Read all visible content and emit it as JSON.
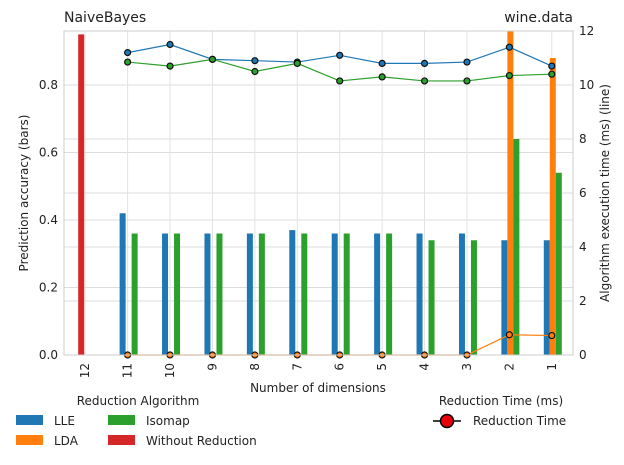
{
  "chart_data": {
    "type": "bar",
    "title_left": "NaiveBayes",
    "title_right": "wine.data",
    "xlabel": "Number of dimensions",
    "ylabel_left": "Prediction accuracy (bars)",
    "ylabel_right": "Algorithm execution time (ms) (line)",
    "categories": [
      "12",
      "11",
      "10",
      "9",
      "8",
      "7",
      "6",
      "5",
      "4",
      "3",
      "2",
      "1"
    ],
    "ylim_left": [
      0,
      0.96
    ],
    "yticks_left": [
      "0.0",
      "0.2",
      "0.4",
      "0.6",
      "0.8"
    ],
    "ylim_right": [
      0,
      12
    ],
    "yticks_right": [
      "0",
      "2",
      "4",
      "6",
      "8",
      "10",
      "12"
    ],
    "grid": true,
    "bar_series": [
      {
        "name": "LLE",
        "color": "#1f77b4",
        "values": [
          null,
          0.42,
          0.36,
          0.36,
          0.36,
          0.37,
          0.36,
          0.36,
          0.36,
          0.36,
          0.34,
          0.34
        ]
      },
      {
        "name": "LDA",
        "color": "#ff7f0e",
        "values": [
          null,
          null,
          null,
          null,
          null,
          null,
          null,
          null,
          null,
          null,
          0.96,
          0.88
        ]
      },
      {
        "name": "Isomap",
        "color": "#2ca02c",
        "values": [
          null,
          0.36,
          0.36,
          0.36,
          0.36,
          0.36,
          0.36,
          0.36,
          0.34,
          0.34,
          0.64,
          0.54
        ]
      },
      {
        "name": "Without Reduction",
        "color": "#d62728",
        "values": [
          0.95,
          null,
          null,
          null,
          null,
          null,
          null,
          null,
          null,
          null,
          null,
          null
        ]
      }
    ],
    "line_series": [
      {
        "name": "LLE",
        "color": "#1f77b4",
        "values": [
          null,
          11.2,
          11.5,
          10.95,
          10.9,
          10.85,
          11.1,
          10.8,
          10.8,
          10.85,
          11.4,
          10.7
        ]
      },
      {
        "name": "Isomap",
        "color": "#2ca02c",
        "values": [
          null,
          10.85,
          10.7,
          10.95,
          10.5,
          10.8,
          10.15,
          10.3,
          10.15,
          10.15,
          10.35,
          10.4
        ]
      },
      {
        "name": "LDA",
        "color": "#ff7f0e",
        "values": [
          null,
          0,
          0,
          0,
          0,
          0,
          0,
          0,
          0,
          0,
          0.75,
          0.72
        ]
      }
    ],
    "legend_left": {
      "title": "Reduction Algorithm",
      "entries": [
        {
          "label": "LLE",
          "color": "#1f77b4"
        },
        {
          "label": "LDA",
          "color": "#ff7f0e"
        },
        {
          "label": "Isomap",
          "color": "#2ca02c"
        },
        {
          "label": "Without Reduction",
          "color": "#d62728"
        }
      ]
    },
    "legend_right": {
      "title": "Reduction Time (ms)",
      "entry": "Reduction Time",
      "marker_color": "#e8000b"
    }
  }
}
